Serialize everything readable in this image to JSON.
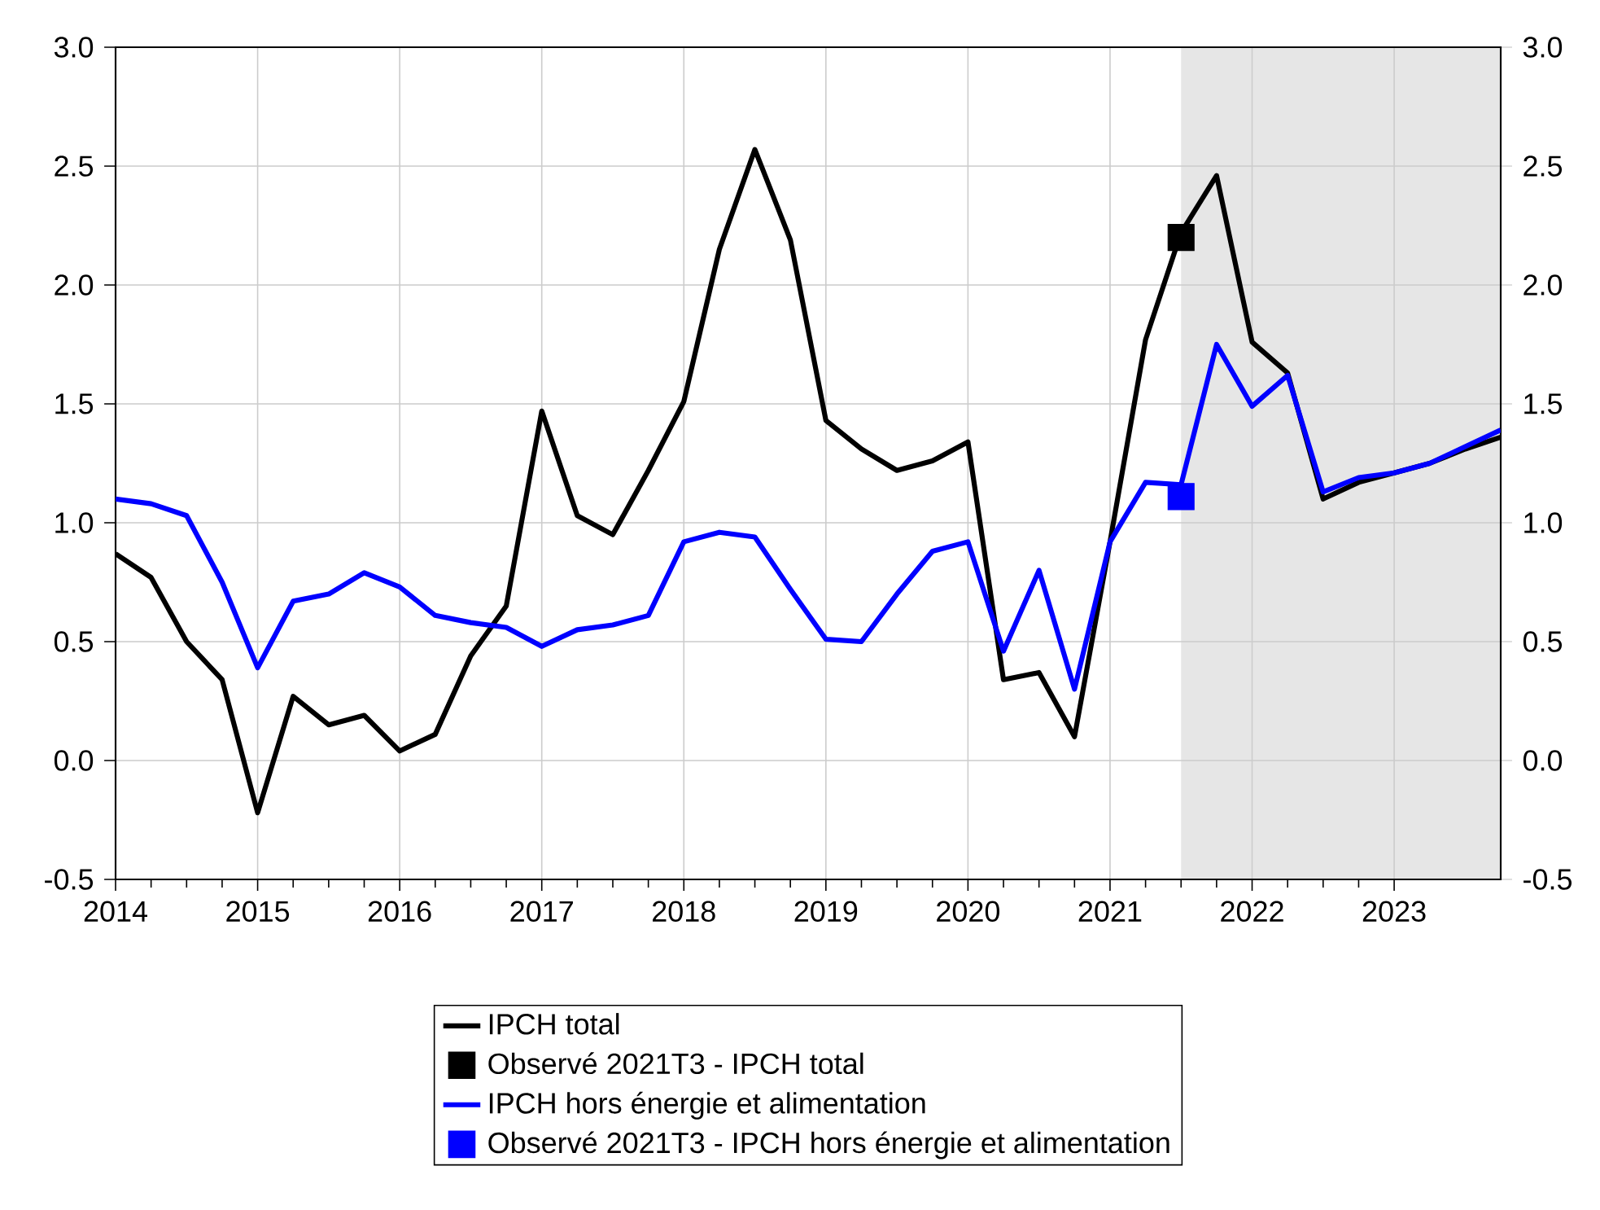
{
  "chart_data": {
    "type": "line",
    "x": [
      2014.0,
      2014.25,
      2014.5,
      2014.75,
      2015.0,
      2015.25,
      2015.5,
      2015.75,
      2016.0,
      2016.25,
      2016.5,
      2016.75,
      2017.0,
      2017.25,
      2017.5,
      2017.75,
      2018.0,
      2018.25,
      2018.5,
      2018.75,
      2019.0,
      2019.25,
      2019.5,
      2019.75,
      2020.0,
      2020.25,
      2020.5,
      2020.75,
      2021.0,
      2021.25,
      2021.5,
      2021.75,
      2022.0,
      2022.25,
      2022.5,
      2022.75,
      2023.0,
      2023.25,
      2023.5,
      2023.75
    ],
    "series": [
      {
        "name": "IPCH total",
        "color": "#000000",
        "values": [
          0.87,
          0.77,
          0.5,
          0.34,
          -0.22,
          0.27,
          0.15,
          0.19,
          0.04,
          0.11,
          0.44,
          0.65,
          1.47,
          1.03,
          0.95,
          1.22,
          1.51,
          2.15,
          2.57,
          2.19,
          1.43,
          1.31,
          1.22,
          1.26,
          1.34,
          0.34,
          0.37,
          0.1,
          0.92,
          1.77,
          2.22,
          2.46,
          1.76,
          1.63,
          1.1,
          1.17,
          1.21,
          1.25,
          1.31,
          1.36
        ]
      },
      {
        "name": "Observé 2021T3 - IPCH total",
        "type": "scatter",
        "marker": "square",
        "color": "#000000",
        "x": [
          2021.5
        ],
        "values": [
          2.2
        ]
      },
      {
        "name": "IPCH hors énergie et alimentation",
        "color": "#0000ff",
        "values": [
          1.1,
          1.08,
          1.03,
          0.75,
          0.39,
          0.67,
          0.7,
          0.79,
          0.73,
          0.61,
          0.58,
          0.56,
          0.48,
          0.55,
          0.57,
          0.61,
          0.92,
          0.96,
          0.94,
          0.72,
          0.51,
          0.5,
          0.7,
          0.88,
          0.92,
          0.46,
          0.8,
          0.3,
          0.92,
          1.17,
          1.16,
          1.75,
          1.49,
          1.62,
          1.13,
          1.19,
          1.21,
          1.25,
          1.32,
          1.39
        ]
      },
      {
        "name": "Observé 2021T3 - IPCH hors énergie et alimentation",
        "type": "scatter",
        "marker": "square",
        "color": "#0000ff",
        "x": [
          2021.5
        ],
        "values": [
          1.11
        ]
      }
    ],
    "xlim": [
      2014,
      2023.75
    ],
    "xticks": [
      2014,
      2015,
      2016,
      2017,
      2018,
      2019,
      2020,
      2021,
      2022,
      2023
    ],
    "ylim": [
      -0.5,
      3.0
    ],
    "yticks": [
      {
        "value": -0.5,
        "label": "-0.5"
      },
      {
        "value": 0,
        "label": "0.0"
      },
      {
        "value": 0.5,
        "label": "0.5"
      },
      {
        "value": 1,
        "label": "1.0"
      },
      {
        "value": 1.5,
        "label": "1.5"
      },
      {
        "value": 2,
        "label": "2.0"
      },
      {
        "value": 2.5,
        "label": "2.5"
      },
      {
        "value": 3,
        "label": "3.0"
      }
    ],
    "y2lim": [
      -0.5,
      3.0
    ],
    "y2ticks": [
      {
        "value": -0.5,
        "label": "-0.5"
      },
      {
        "value": 0,
        "label": "0.0"
      },
      {
        "value": 0.5,
        "label": "0.5"
      },
      {
        "value": 1,
        "label": "1.0"
      },
      {
        "value": 1.5,
        "label": "1.5"
      },
      {
        "value": 2,
        "label": "2.0"
      },
      {
        "value": 2.5,
        "label": "2.5"
      },
      {
        "value": 3,
        "label": "3.0"
      }
    ],
    "bands": [
      {
        "axis": "x",
        "from": 2021.5,
        "to": 2023.75,
        "color": "#e6e6e6"
      }
    ],
    "grid": true,
    "legend": "bottom"
  }
}
